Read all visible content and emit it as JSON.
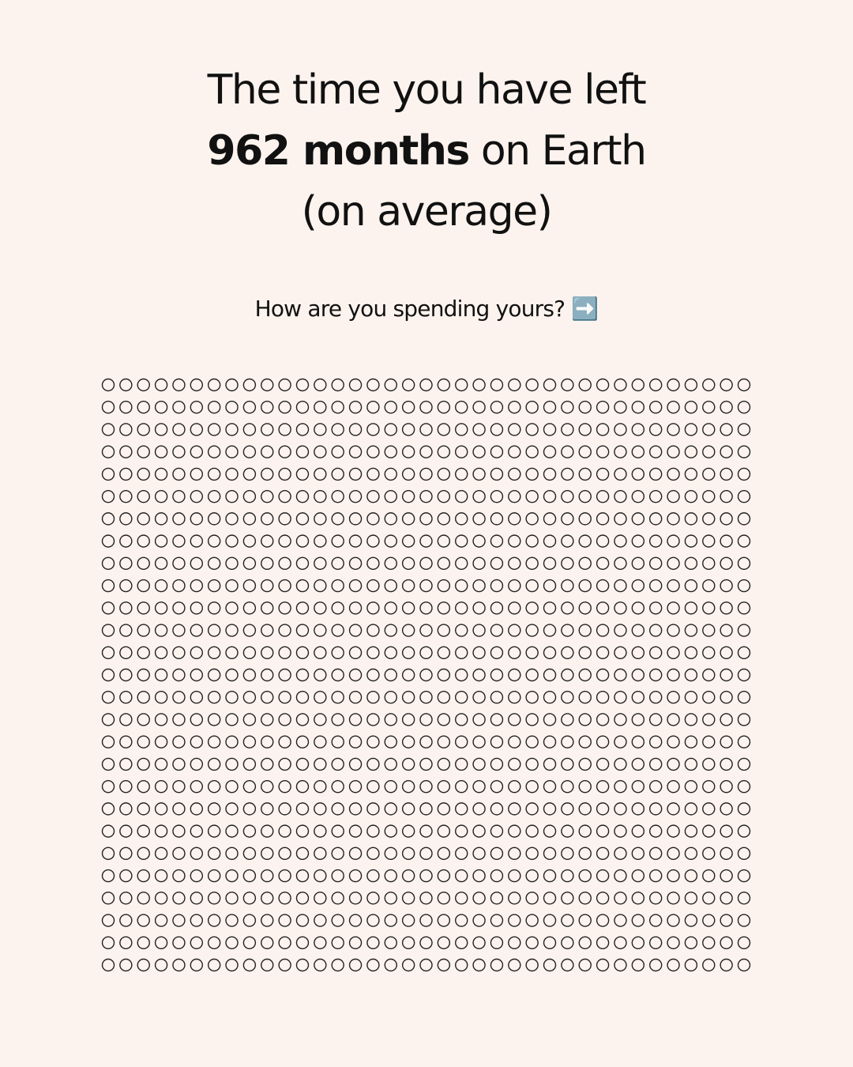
{
  "header": {
    "line1": "The time you have left",
    "line2_bold": "962 months",
    "line2_rest": "on Earth",
    "line3": "(on average)"
  },
  "subtitle": "How are you spending yours? ➡️"
}
